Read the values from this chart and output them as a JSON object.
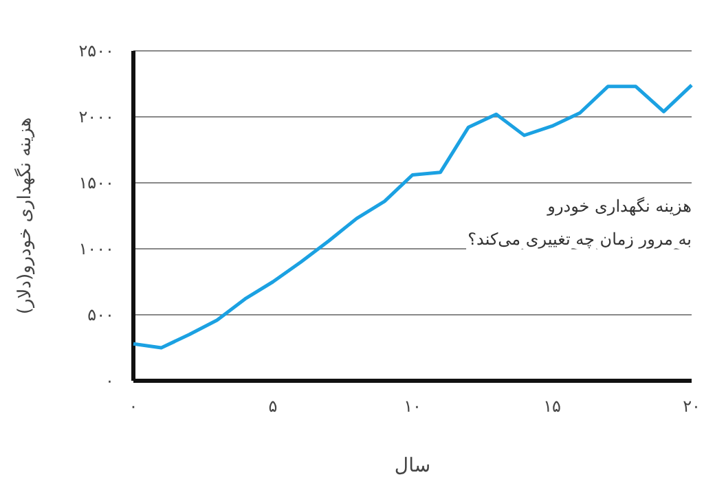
{
  "chart_data": {
    "type": "line",
    "xlabel": "سال",
    "ylabel": "هزینه نگهداری خودرو(دلار)",
    "annotations": [
      "هزینه نگهداری خودرو\nبه مرور زمان چه تغییری می‌کند؟"
    ],
    "x": [
      0,
      1,
      2,
      3,
      4,
      5,
      6,
      7,
      8,
      9,
      10,
      11,
      12,
      13,
      14,
      15,
      16,
      17,
      18,
      19,
      20
    ],
    "series": [
      {
        "color": "#1ba1e2",
        "values": [
          280,
          250,
          350,
          460,
          620,
          750,
          900,
          1060,
          1230,
          1360,
          1560,
          1580,
          1920,
          2020,
          1860,
          1930,
          2030,
          2230,
          2230,
          2040,
          2240
        ]
      }
    ],
    "xlim": [
      0,
      20
    ],
    "ylim": [
      0,
      2500
    ],
    "xticks": [
      {
        "value": 0,
        "label": "۰"
      },
      {
        "value": 5,
        "label": "۵"
      },
      {
        "value": 10,
        "label": "۱۰"
      },
      {
        "value": 15,
        "label": "۱۵"
      },
      {
        "value": 20,
        "label": "۲۰"
      }
    ],
    "yticks": [
      {
        "value": 0,
        "label": "۰"
      },
      {
        "value": 500,
        "label": "۵۰۰"
      },
      {
        "value": 1000,
        "label": "۱۰۰۰"
      },
      {
        "value": 1500,
        "label": "۱۵۰۰"
      },
      {
        "value": 2000,
        "label": "۲۰۰۰"
      },
      {
        "value": 2500,
        "label": "۲۵۰۰"
      }
    ],
    "grid": "y",
    "marker": "none",
    "line_style": "solid"
  }
}
